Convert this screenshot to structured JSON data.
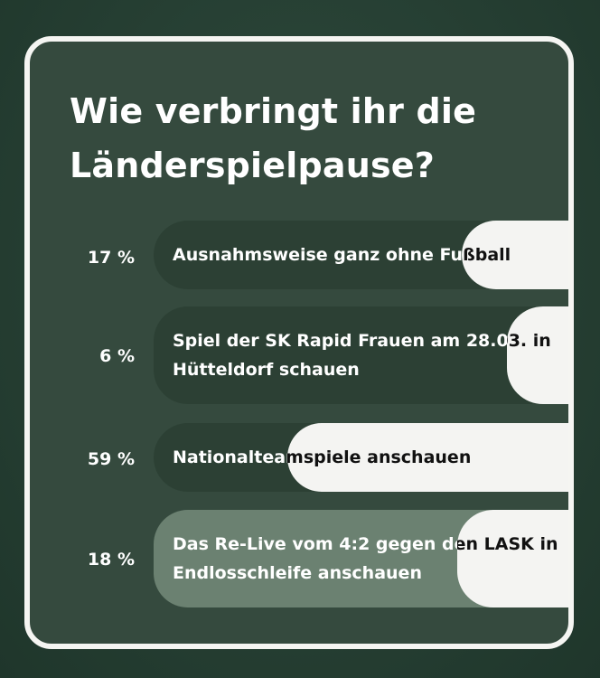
{
  "poll": {
    "question": "Wie verbringt ihr die Länderspielpause?",
    "options": [
      {
        "percent_label": "17 %",
        "percent": 17,
        "text": "Ausnahmsweise ganz ohne Fußball",
        "bar_color": "#2c4034"
      },
      {
        "percent_label": "6 %",
        "percent": 6,
        "text": "Spiel der SK Rapid Frauen am 28.03. in Hütteldorf schauen",
        "bar_color": "#2c4034"
      },
      {
        "percent_label": "59 %",
        "percent": 59,
        "text": "Nationalteamspiele anschauen",
        "bar_color": "#2c4034"
      },
      {
        "percent_label": "18 %",
        "percent": 18,
        "text": "Das Re-Live vom 4:2 gegen den LASK in Endlosschleife anschauen",
        "bar_color": "#6b8171"
      }
    ]
  },
  "colors": {
    "background": "#263f33",
    "card": "#354a3e",
    "card_border": "#f5f5f2",
    "fill": "#f4f4f2",
    "text_light": "#ffffff",
    "text_dark": "#111111"
  }
}
